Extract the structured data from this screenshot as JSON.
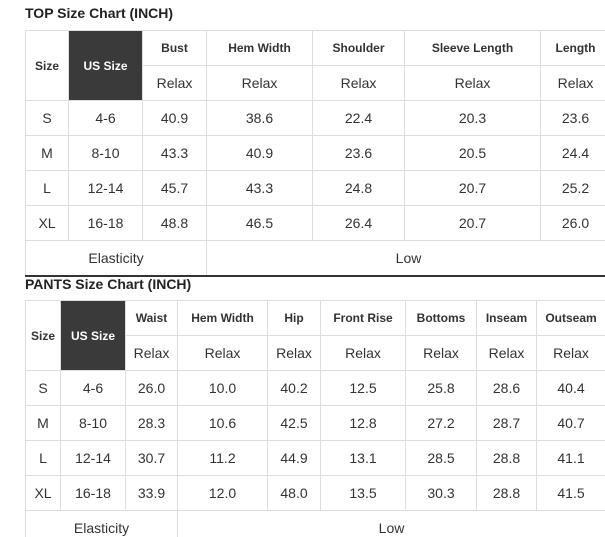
{
  "top": {
    "title": "TOP Size Chart (INCH)",
    "header": [
      "Size",
      "US Size",
      "Bust",
      "Hem Width",
      "Shoulder",
      "Sleeve Length",
      "Length"
    ],
    "subheader": [
      "Relax",
      "Relax",
      "Relax",
      "Relax",
      "Relax"
    ],
    "rows": [
      [
        "S",
        "4-6",
        "40.9",
        "38.6",
        "22.4",
        "20.3",
        "23.6"
      ],
      [
        "M",
        "8-10",
        "43.3",
        "40.9",
        "23.6",
        "20.5",
        "24.4"
      ],
      [
        "L",
        "12-14",
        "45.7",
        "43.3",
        "24.8",
        "20.7",
        "25.2"
      ],
      [
        "XL",
        "16-18",
        "48.8",
        "46.5",
        "26.4",
        "20.7",
        "26.0"
      ]
    ],
    "footer": [
      "Elasticity",
      "Low"
    ]
  },
  "pants": {
    "title": "PANTS Size Chart (INCH)",
    "header": [
      "Size",
      "US Size",
      "Waist",
      "Hem Width",
      "Hip",
      "Front Rise",
      "Bottoms",
      "Inseam",
      "Outseam"
    ],
    "subheader": [
      "Relax",
      "Relax",
      "Relax",
      "Relax",
      "Relax",
      "Relax",
      "Relax"
    ],
    "rows": [
      [
        "S",
        "4-6",
        "26.0",
        "10.0",
        "40.2",
        "12.5",
        "25.8",
        "28.6",
        "40.4"
      ],
      [
        "M",
        "8-10",
        "28.3",
        "10.6",
        "42.5",
        "12.8",
        "27.2",
        "28.7",
        "40.7"
      ],
      [
        "L",
        "12-14",
        "30.7",
        "11.2",
        "44.9",
        "13.1",
        "28.5",
        "28.8",
        "41.1"
      ],
      [
        "XL",
        "16-18",
        "33.9",
        "12.0",
        "48.0",
        "13.5",
        "30.3",
        "28.8",
        "41.5"
      ]
    ],
    "footer": [
      "Elasticity",
      "Low"
    ]
  }
}
